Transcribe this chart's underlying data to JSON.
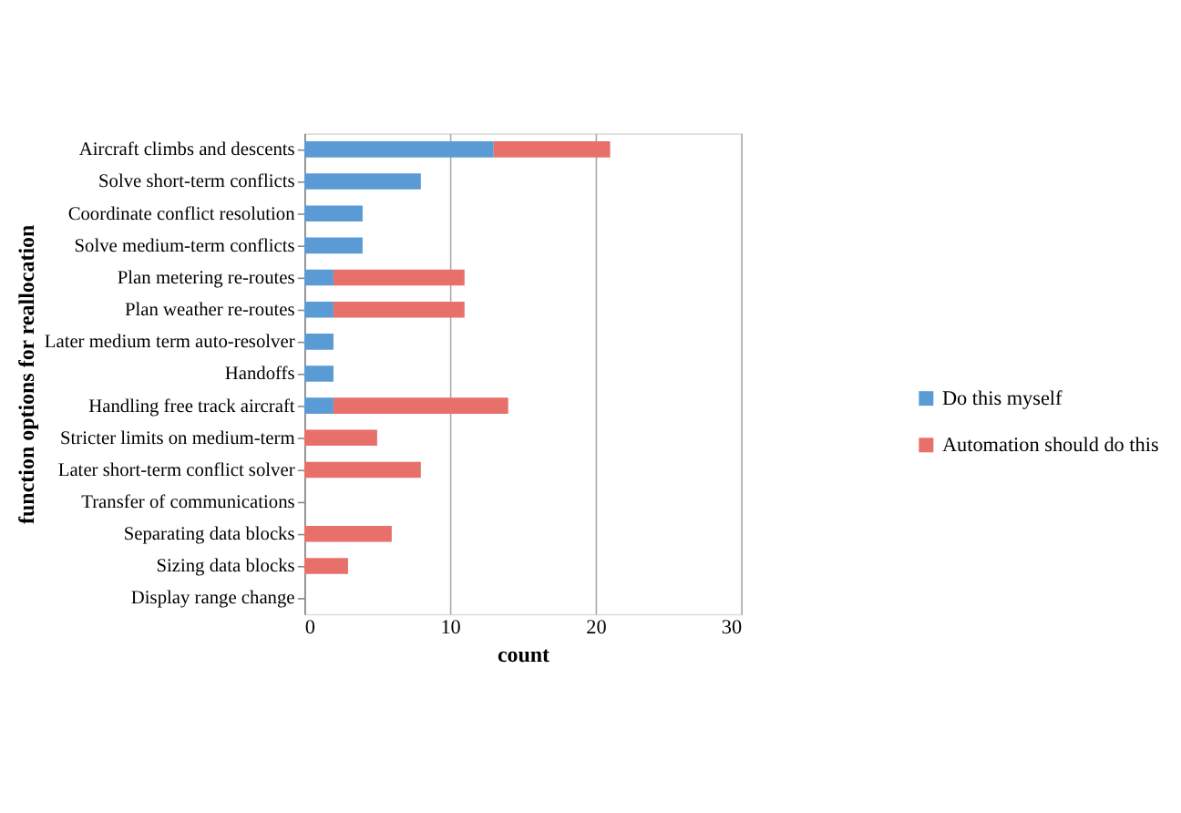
{
  "chart_data": {
    "type": "bar",
    "orientation": "horizontal",
    "stacked": true,
    "xlabel": "count",
    "ylabel": "function options for reallocation",
    "categories": [
      "Aircraft climbs and descents",
      "Solve short-term conflicts",
      "Coordinate conflict resolution",
      "Solve medium-term conflicts",
      "Plan metering re-routes",
      "Plan weather re-routes",
      "Later medium term auto-resolver",
      "Handoffs",
      "Handling free track aircraft",
      "Stricter limits on medium-term",
      "Later short-term conflict solver",
      "Transfer of communications",
      "Separating data blocks",
      "Sizing data blocks",
      "Display range  change"
    ],
    "series": [
      {
        "name": "Do this myself",
        "color": "#5b9bd5",
        "values": [
          13,
          8,
          4,
          4,
          2,
          2,
          2,
          2,
          2,
          0,
          0,
          0,
          0,
          0,
          0
        ]
      },
      {
        "name": "Automation should do this",
        "color": "#e8706b",
        "values": [
          8,
          0,
          0,
          0,
          9,
          9,
          0,
          0,
          12,
          5,
          8,
          0,
          6,
          3,
          0
        ]
      }
    ],
    "xlim": [
      0,
      30
    ],
    "xticks": [
      0,
      10,
      20,
      30
    ],
    "grid": "x",
    "legend": "right"
  }
}
